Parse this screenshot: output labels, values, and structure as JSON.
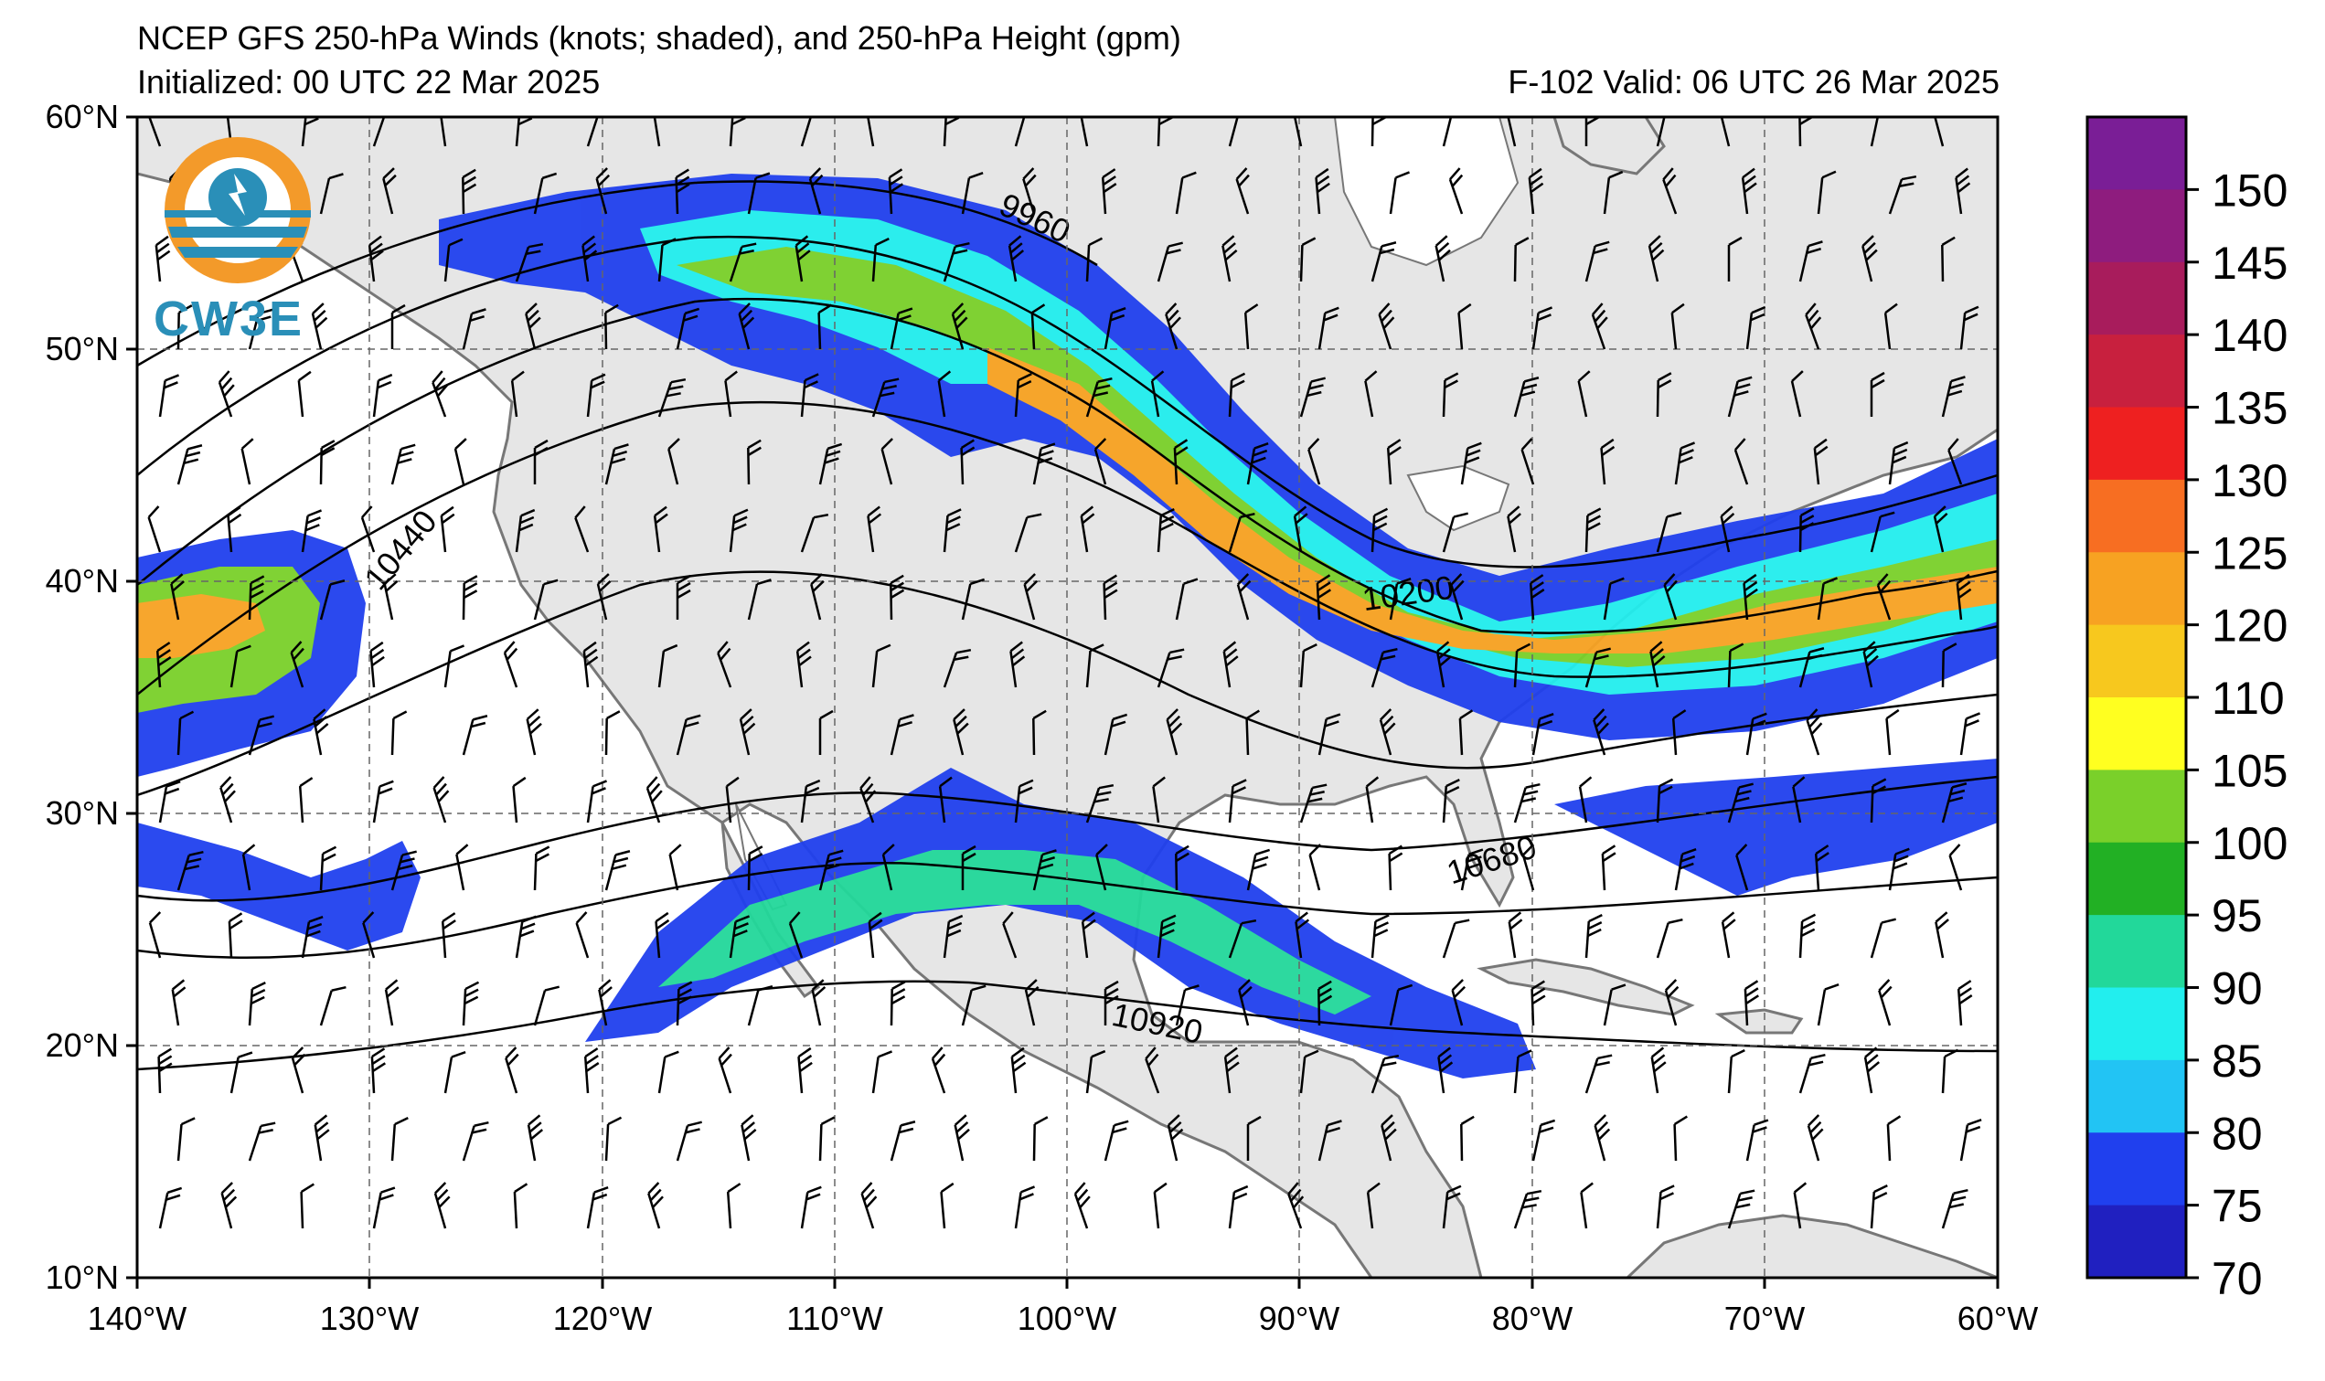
{
  "title": {
    "line1": "NCEP GFS 250-hPa Winds (knots; shaded), and 250-hPa Height (gpm)",
    "initialized": "Initialized: 00 UTC 22 Mar 2025",
    "valid": "F-102  Valid: 06 UTC 26 Mar 2025"
  },
  "logo": {
    "text": "CW3E",
    "icon": "cw3e-logo-icon"
  },
  "map": {
    "lon_range": [
      -140,
      -60
    ],
    "lat_range": [
      10,
      60
    ],
    "lon_ticks": [
      "140°W",
      "130°W",
      "120°W",
      "110°W",
      "100°W",
      "90°W",
      "80°W",
      "70°W",
      "60°W"
    ],
    "lat_ticks": [
      "60°N",
      "50°N",
      "40°N",
      "30°N",
      "20°N",
      "10°N"
    ],
    "grid": "dashed",
    "land_color": "#e6e6e6",
    "ocean_color": "#ffffff"
  },
  "contours": {
    "labels": [
      "9960",
      "10200",
      "10440",
      "10680",
      "10920"
    ]
  },
  "colorbar": {
    "ticks": [
      "150",
      "145",
      "140",
      "135",
      "130",
      "125",
      "120",
      "110",
      "105",
      "100",
      "95",
      "90",
      "85",
      "80",
      "75",
      "70"
    ],
    "colors": [
      "#7a1e96",
      "#8e1c7e",
      "#a81c5c",
      "#c8203e",
      "#ee2020",
      "#f76e22",
      "#f7a222",
      "#f7c81e",
      "#ffff20",
      "#7ad02a",
      "#22b024",
      "#22d89a",
      "#22eeee",
      "#22c4f4",
      "#2040ee",
      "#2020c0"
    ]
  }
}
